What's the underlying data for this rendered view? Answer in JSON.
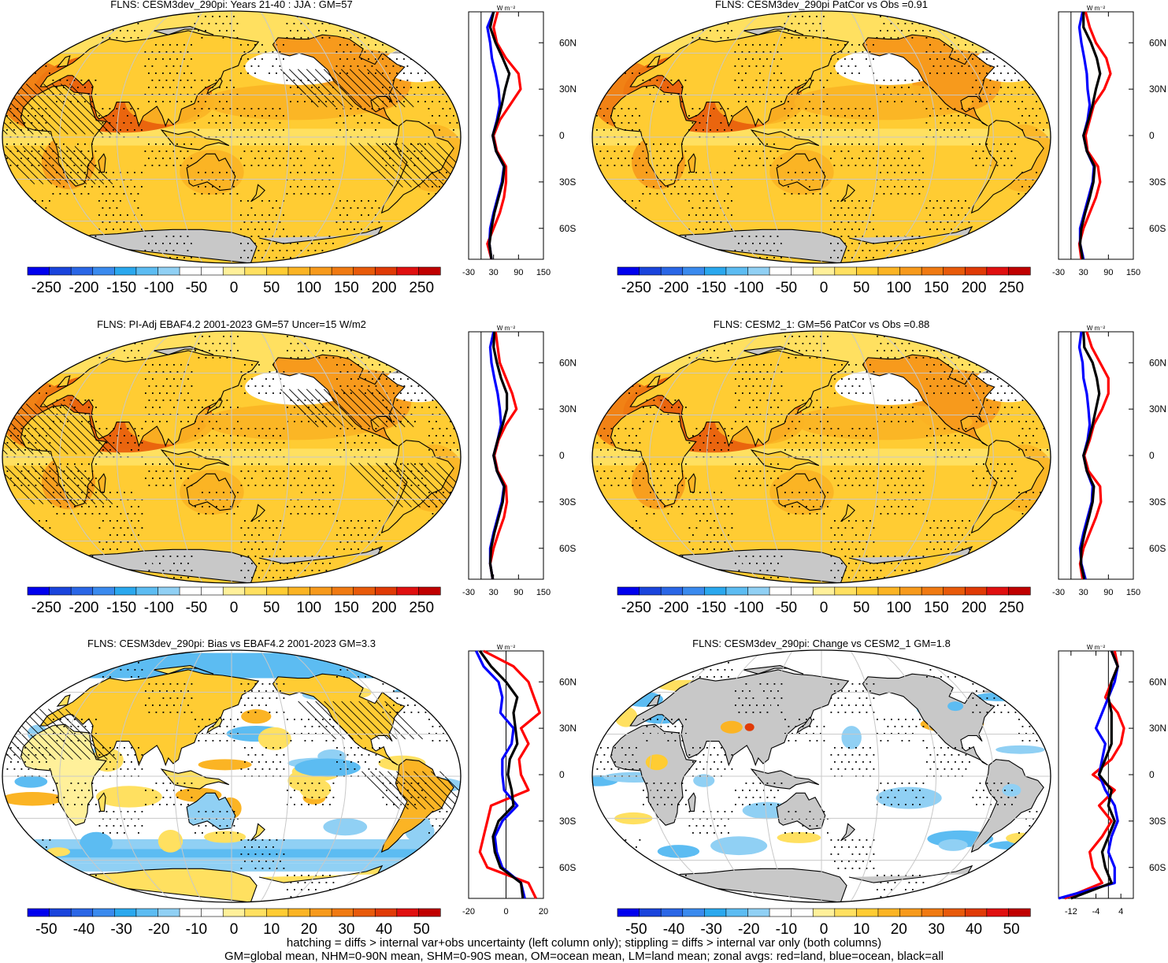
{
  "chart_data": [
    {
      "type": "heatmap",
      "title": "FLNS: CESM3dev_290pi: Years 21-40 : JJA : GM=57",
      "field": "mean",
      "hatching": true,
      "colorbar": {
        "ticks": [
          "-250",
          "-200",
          "-150",
          "-100",
          "-50",
          "0",
          "50",
          "100",
          "150",
          "200",
          "250"
        ],
        "range": [
          -275,
          275
        ]
      },
      "zonal": {
        "units_label": "W m⁻²",
        "xlim": [
          -30,
          150
        ],
        "xticks": [
          "-30",
          "30",
          "90",
          "150"
        ],
        "lat_ticks": [
          "60N",
          "30N",
          "0",
          "30S",
          "60S"
        ],
        "lat": [
          80,
          70,
          60,
          50,
          40,
          30,
          20,
          10,
          0,
          -10,
          -20,
          -30,
          -40,
          -50,
          -60,
          -70,
          -80
        ],
        "series": [
          {
            "color": "#ff0000",
            "values": [
              40,
              30,
              38,
              60,
              90,
              95,
              70,
              45,
              30,
              38,
              60,
              60,
              55,
              45,
              30,
              15,
              25
            ]
          },
          {
            "color": "#0000ff",
            "values": [
              30,
              15,
              22,
              26,
              35,
              42,
              45,
              38,
              28,
              36,
              55,
              50,
              40,
              30,
              22,
              20,
              25
            ]
          },
          {
            "color": "#000000",
            "values": [
              30,
              22,
              35,
              52,
              68,
              58,
              50,
              40,
              28,
              36,
              56,
              52,
              42,
              32,
              25,
              20,
              25
            ]
          }
        ]
      }
    },
    {
      "type": "heatmap",
      "title": "FLNS: CESM3dev_290pi PatCor vs Obs =0.91",
      "field": "mean",
      "hatching": false,
      "colorbar": {
        "ticks": [
          "-250",
          "-200",
          "-150",
          "-100",
          "-50",
          "0",
          "50",
          "100",
          "150",
          "200",
          "250"
        ],
        "range": [
          -275,
          275
        ]
      },
      "zonal": {
        "units_label": "W m⁻²",
        "xlim": [
          -30,
          150
        ],
        "xticks": [
          "-30",
          "30",
          "90",
          "150"
        ],
        "lat_ticks": [
          "60N",
          "30N",
          "0",
          "30S",
          "60S"
        ],
        "lat": [
          80,
          70,
          60,
          50,
          40,
          30,
          20,
          10,
          0,
          -10,
          -20,
          -30,
          -40,
          -50,
          -60,
          -70,
          -80
        ],
        "series": [
          {
            "color": "#ff0000",
            "values": [
              35,
              45,
              60,
              85,
              95,
              80,
              55,
              45,
              35,
              40,
              65,
              70,
              60,
              45,
              30,
              20,
              25
            ]
          },
          {
            "color": "#0000ff",
            "values": [
              28,
              20,
              25,
              32,
              38,
              40,
              45,
              40,
              30,
              38,
              55,
              52,
              42,
              32,
              22,
              22,
              30
            ]
          },
          {
            "color": "#000000",
            "values": [
              30,
              30,
              48,
              62,
              70,
              60,
              52,
              42,
              30,
              38,
              57,
              54,
              45,
              34,
              25,
              22,
              28
            ]
          }
        ]
      }
    },
    {
      "type": "heatmap",
      "title": "FLNS: PI-Adj EBAF4.2 2001-2023 GM=57 Uncer=15 W/m2",
      "field": "mean",
      "hatching": true,
      "colorbar": {
        "ticks": [
          "-250",
          "-200",
          "-150",
          "-100",
          "-50",
          "0",
          "50",
          "100",
          "150",
          "200",
          "250"
        ],
        "range": [
          -275,
          275
        ]
      },
      "zonal": {
        "units_label": "W m⁻²",
        "xlim": [
          -30,
          150
        ],
        "xticks": [
          "-30",
          "30",
          "90",
          "150"
        ],
        "lat_ticks": [
          "60N",
          "30N",
          "0",
          "30S",
          "60S"
        ],
        "lat": [
          80,
          70,
          60,
          50,
          40,
          30,
          20,
          10,
          0,
          -10,
          -20,
          -30,
          -40,
          -50,
          -60,
          -70,
          -80
        ],
        "series": [
          {
            "color": "#ff0000",
            "values": [
              35,
              40,
              45,
              60,
              75,
              85,
              60,
              42,
              32,
              40,
              60,
              62,
              55,
              42,
              30,
              22,
              28
            ]
          },
          {
            "color": "#0000ff",
            "values": [
              30,
              22,
              25,
              32,
              40,
              45,
              48,
              40,
              30,
              38,
              55,
              50,
              40,
              30,
              22,
              22,
              28
            ]
          },
          {
            "color": "#000000",
            "values": [
              32,
              30,
              38,
              48,
              62,
              62,
              52,
              40,
              30,
              38,
              56,
              52,
              42,
              32,
              24,
              22,
              28
            ]
          }
        ]
      }
    },
    {
      "type": "heatmap",
      "title": "FLNS: CESM2_1: GM=56 PatCor vs Obs =0.88",
      "field": "mean",
      "hatching": false,
      "colorbar": {
        "ticks": [
          "-250",
          "-200",
          "-150",
          "-100",
          "-50",
          "0",
          "50",
          "100",
          "150",
          "200",
          "250"
        ],
        "range": [
          -275,
          275
        ]
      },
      "zonal": {
        "units_label": "W m⁻²",
        "xlim": [
          -30,
          150
        ],
        "xticks": [
          "-30",
          "30",
          "90",
          "150"
        ],
        "lat_ticks": [
          "60N",
          "30N",
          "0",
          "30S",
          "60S"
        ],
        "lat": [
          80,
          70,
          60,
          50,
          40,
          30,
          20,
          10,
          0,
          -10,
          -20,
          -30,
          -40,
          -50,
          -60,
          -70,
          -80
        ],
        "series": [
          {
            "color": "#ff0000",
            "values": [
              38,
              50,
              70,
              90,
              90,
              75,
              55,
              45,
              32,
              42,
              70,
              72,
              60,
              45,
              30,
              22,
              28
            ]
          },
          {
            "color": "#0000ff",
            "values": [
              25,
              20,
              28,
              30,
              38,
              42,
              45,
              40,
              30,
              38,
              52,
              50,
              40,
              30,
              22,
              25,
              35
            ]
          },
          {
            "color": "#000000",
            "values": [
              30,
              32,
              52,
              62,
              68,
              60,
              52,
              42,
              30,
              38,
              55,
              52,
              43,
              33,
              25,
              24,
              32
            ]
          }
        ]
      }
    },
    {
      "type": "heatmap",
      "title": "FLNS: CESM3dev_290pi: Bias vs EBAF4.2 2001-2023 GM=3.3",
      "field": "bias",
      "hatching": true,
      "colorbar": {
        "ticks": [
          "-50",
          "-40",
          "-30",
          "-20",
          "-10",
          "0",
          "10",
          "20",
          "30",
          "40",
          "50"
        ],
        "range": [
          -55,
          55
        ]
      },
      "zonal": {
        "units_label": "W m⁻²",
        "xlim": [
          -20,
          20
        ],
        "xticks": [
          "-20",
          "0",
          "20"
        ],
        "lat_ticks": [
          "60N",
          "30N",
          "0",
          "30S",
          "60S"
        ],
        "lat": [
          80,
          70,
          60,
          50,
          40,
          30,
          20,
          10,
          0,
          -10,
          -20,
          -30,
          -40,
          -50,
          -60,
          -70,
          -80
        ],
        "series": [
          {
            "color": "#ff0000",
            "values": [
              -12,
              4,
              12,
              15,
              18,
              8,
              12,
              7,
              8,
              12,
              -8,
              -10,
              -12,
              -14,
              -10,
              12,
              16
            ]
          },
          {
            "color": "#0000ff",
            "values": [
              -16,
              -12,
              -4,
              -2,
              -3,
              4,
              3,
              -2,
              -2,
              -1,
              6,
              -2,
              -6,
              -5,
              -2,
              8,
              10
            ]
          },
          {
            "color": "#000000",
            "values": [
              -14,
              -8,
              0,
              6,
              4,
              5,
              6,
              2,
              1,
              3,
              4,
              -4,
              -7,
              -6,
              -3,
              8,
              9
            ]
          }
        ]
      }
    },
    {
      "type": "heatmap",
      "title": "FLNS: CESM3dev_290pi: Change vs CESM2_1 GM=1.8",
      "field": "change",
      "hatching": false,
      "colorbar": {
        "ticks": [
          "-50",
          "-40",
          "-30",
          "-20",
          "-10",
          "0",
          "10",
          "20",
          "30",
          "40",
          "50"
        ],
        "range": [
          -55,
          55
        ]
      },
      "zonal": {
        "units_label": "W m⁻²",
        "xlim": [
          -16,
          8
        ],
        "xticks": [
          "-12",
          "-4",
          "4"
        ],
        "lat_ticks": [
          "60N",
          "30N",
          "0",
          "30S",
          "60S"
        ],
        "lat": [
          80,
          70,
          60,
          50,
          40,
          30,
          20,
          10,
          0,
          -10,
          -20,
          -30,
          -40,
          -50,
          -60,
          -70,
          -80
        ],
        "series": [
          {
            "color": "#ff0000",
            "values": [
              2,
              3,
              1,
              -1,
              3,
              5,
              4,
              1,
              -5,
              2,
              -3,
              1,
              -2,
              -6,
              -5,
              -2,
              -14
            ]
          },
          {
            "color": "#0000ff",
            "values": [
              1,
              3,
              2,
              0,
              -2,
              -4,
              -1,
              -2,
              -3,
              -1,
              2,
              3,
              1,
              0,
              2,
              2,
              -16
            ]
          },
          {
            "color": "#000000",
            "values": [
              1,
              3,
              1,
              0,
              1,
              1,
              1,
              -1,
              -3,
              1,
              0,
              2,
              0,
              -2,
              -1,
              1,
              -12
            ]
          }
        ]
      }
    }
  ],
  "footnote": {
    "line1": "hatching = diffs > internal var+obs uncertainty (left column only); stippling = diffs > internal var only (both columns)",
    "line2": "GM=global mean, NHM=0-90N mean, SHM=0-90S mean, OM=ocean mean, LM=land mean; zonal avgs: red=land, blue=ocean, black=all"
  },
  "colors": {
    "colorbar": [
      "#0000ee",
      "#1a44dc",
      "#2a66e6",
      "#3a8aee",
      "#2aa8ee",
      "#5cbcf2",
      "#90d0f4",
      "#ffffff",
      "#ffffff",
      "#fff09a",
      "#ffe060",
      "#ffcc33",
      "#fbb424",
      "#f79a1c",
      "#f07a12",
      "#e85a0a",
      "#e03a06",
      "#e01010",
      "#c00000"
    ],
    "land_gray": "#c8c8c8",
    "coast": "#000000"
  }
}
